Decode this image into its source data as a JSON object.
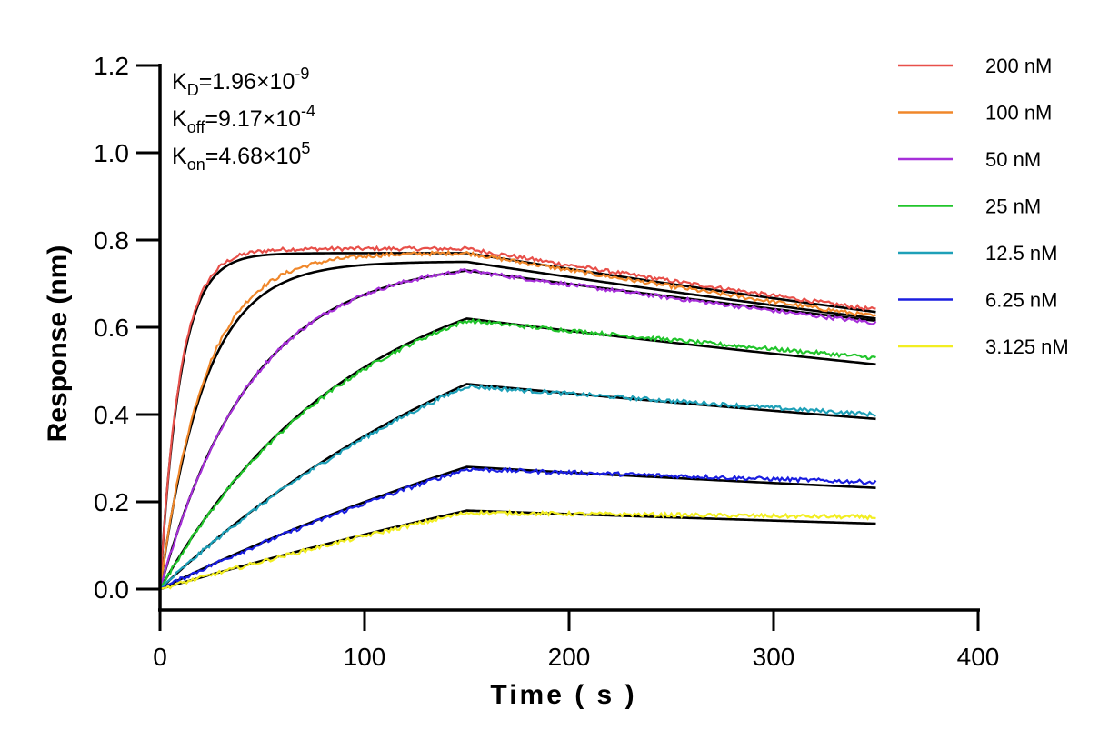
{
  "chart_data": {
    "type": "line",
    "title": "",
    "xlabel": "Time ( s )",
    "ylabel": "Response (nm)",
    "xlim": [
      0,
      400
    ],
    "ylim": [
      0,
      1.2
    ],
    "x_ticks": [
      "0",
      "100",
      "200",
      "300",
      "400"
    ],
    "y_ticks": [
      "0.0",
      "0.2",
      "0.4",
      "0.6",
      "0.8",
      "1.0",
      "1.2"
    ],
    "grid": false,
    "legend_position": "top-right",
    "association_end": 150,
    "time_end": 350,
    "annotations": [
      {
        "base": "K",
        "sub": "D",
        "text": "=1.96×10",
        "sup": "-9"
      },
      {
        "base": "K",
        "sub": "off",
        "text": "=9.17×10",
        "sup": "-4"
      },
      {
        "base": "K",
        "sub": "on",
        "text": "=4.68×10",
        "sup": "5"
      }
    ],
    "fit_color": "#000000",
    "series": [
      {
        "name": "200 nM",
        "color": "#e8504a",
        "peak": 0.78,
        "tau": 10,
        "end": 0.64
      },
      {
        "name": "100 nM",
        "color": "#f0872a",
        "peak": 0.77,
        "tau": 22,
        "end": 0.625
      },
      {
        "name": "50 nM",
        "color": "#a62fd9",
        "peak": 0.73,
        "tau": 45,
        "end": 0.61
      },
      {
        "name": "25 nM",
        "color": "#21c52b",
        "peak": 0.615,
        "tau": 95,
        "end": 0.53
      },
      {
        "name": "12.5 nM",
        "color": "#1ea0b8",
        "peak": 0.465,
        "tau": 200,
        "end": 0.4
      },
      {
        "name": "6.25 nM",
        "color": "#1a1ee0",
        "peak": 0.275,
        "tau": 350,
        "end": 0.245
      },
      {
        "name": "3.125 nM",
        "color": "#f2ee22",
        "peak": 0.175,
        "tau": 600,
        "end": 0.165
      }
    ],
    "fits": [
      {
        "peak": 0.77,
        "tau": 10,
        "end": 0.635
      },
      {
        "peak": 0.75,
        "tau": 22,
        "end": 0.62
      },
      {
        "peak": 0.73,
        "tau": 45,
        "end": 0.615
      },
      {
        "peak": 0.62,
        "tau": 95,
        "end": 0.515
      },
      {
        "peak": 0.47,
        "tau": 200,
        "end": 0.39
      },
      {
        "peak": 0.28,
        "tau": 350,
        "end": 0.232
      },
      {
        "peak": 0.18,
        "tau": 600,
        "end": 0.15
      }
    ]
  }
}
